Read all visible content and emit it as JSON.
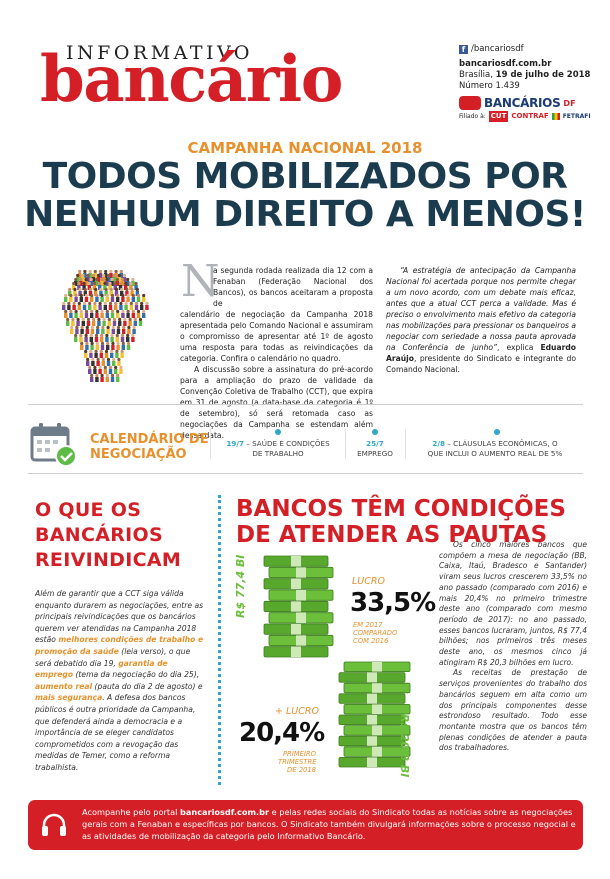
{
  "masthead": {
    "informativo": "INFORMATIVO",
    "bancario": "bancário",
    "facebook": "/bancariosdf",
    "site": "bancariosdf.com.br",
    "date_prefix": "Brasília, ",
    "date": "19 de julho de 2018",
    "number": "Número 1.439",
    "logo_bancarios": "BANCÁRIOS",
    "logo_bancarios_df": "DF",
    "filiado": "Filiado à:",
    "logo_cut": "CUT",
    "logo_contraf": "CONTRAF",
    "logo_fetrafi": "FETRAFI"
  },
  "headline": {
    "kicker": "CAMPANHA NACIONAL 2018",
    "line1": "TODOS MOBILIZADOS POR",
    "line2": "NENHUM DIREITO A MENOS!"
  },
  "lead": {
    "dropcap": "N",
    "p1a": "a segunda rodada realizada dia 12 com a Fenaban (Federação Nacional dos Bancos), os bancos aceitaram a proposta de",
    "p1b": "calendário de negociação da Campanha 2018 apresentada pelo Comando Nacional e assumiram o compromisso de apresentar até 1º de agosto uma resposta para todas as reivindicações da categoria. Confira o calendário no quadro.",
    "p2": "A discussão sobre a assinatura do pré-acordo para a ampliação do prazo de validade da Convenção Coletiva de Trabalho (CCT), que expira em 31 de agosto (a data-base da categoria é 1º de setembro), só será retomada caso as negociações da Campanha se estendam além dessa data.",
    "quote": "“A estratégia de antecipação da Campanha Nacional foi acertada porque nos permite chegar a um novo acordo, com um debate mais eficaz, antes que a atual CCT perca a validade. Mas é preciso o envolvimento mais efetivo da categoria nas mobilizações para pressionar os banqueiros a negociar com seriedade a nossa pauta aprovada na Conferência de junho”",
    "attribution_pre": ", explica ",
    "name": "Eduardo Araújo",
    "attribution_post": ", presidente do Sindicato e integrante do Comando Nacional."
  },
  "calendar": {
    "title_line1": "CALENDÁRIO DE",
    "title_line2": "NEGOCIAÇÃO",
    "items": [
      {
        "date": "19/7",
        "text1": " – SAÚDE E CONDIÇÕES",
        "text2": "DE TRABALHO"
      },
      {
        "date": "25/7",
        "text1": "",
        "text2": "EMPREGO"
      },
      {
        "date": "2/8",
        "text1": " – CLÁUSULAS ECONÔMICAS, O",
        "text2": "QUE INCLUI O AUMENTO REAL DE 5%"
      }
    ]
  },
  "left": {
    "title_l1": "O QUE OS",
    "title_l2": "BANCÁRIOS",
    "title_l3": "REIVINDICAM",
    "t1": "Além de garantir que a CCT siga válida enquanto durarem as negociações, entre as principais reivindicações que os bancários querem ver atendidas na Campanha 2018 estão ",
    "h1": "melhores condições de trabalho e promoção da saúde",
    "t2": " (leia verso), o que será debatido dia 19, ",
    "h2": "garantia de emprego",
    "t3": " (tema da negociação do dia 25), ",
    "h3": "aumento real",
    "t4": " (pauta do dia 2 de agosto) e ",
    "h4": "mais segurança",
    "t5": ". A defesa dos bancos públicos é outra prioridade da Campanha, que defenderá ainda a democracia e a importância de se eleger candidatos comprometidos com a revogação das medidas de Temer, como a reforma trabalhista."
  },
  "right": {
    "title_l1": "BANCOS TÊM CONDIÇÕES",
    "title_l2": "DE ATENDER AS PAUTAS",
    "body1": "Os cinco maiores bancos que compõem a mesa de negociação (BB, Caixa, Itaú, Bradesco e Santander) viram seus lucros crescerem 33,5% no ano passado (comparado com 2016) e mais 20,4% no primeiro trimestre deste ano (comparado com mesmo período de 2017): no ano passado, esses bancos lucraram, juntos, R$ 77,4 bilhões; nos primeiros três meses deste ano, os mesmos cinco já atingiram R$ 20,3 bilhões em lucro.",
    "body2": "As receitas de prestação de serviços provenientes do trabalho dos bancários seguem em alta como um dos principais componentes desse estrondoso resultado. Todo esse montante mostra que os bancos têm plenas condições de atender a pauta dos trabalhadores.",
    "stat1": {
      "amount": "R$ 77,4 BI",
      "label": "LUCRO",
      "value": "33,5%",
      "note1": "EM 2017",
      "note2": "COMPARADO",
      "note3": "COM 2016"
    },
    "stat2": {
      "amount": "R$ 20,3 BI",
      "label": "+ LUCRO",
      "value": "20,4%",
      "note1": "PRIMEIRO",
      "note2": "TRIMESTRE",
      "note3": "DE 2018"
    }
  },
  "footer": {
    "t1": "Acompanhe pelo portal ",
    "site": "bancariosdf.com.br",
    "t2": " e pelas redes sociais do Sindicato todas as notícias sobre as negociações gerais com a Fenaban e específicas por bancos. O Sindicato também divulgará informações sobre o processo negocial e as atividades de mobilização da categoria pelo Informativo Bancário."
  },
  "colors": {
    "brand_red": "#d41f26",
    "accent_orange": "#e8912c",
    "headline_navy": "#1b3b4f",
    "accent_teal": "#2fa8c8",
    "money_green": "#6bbf3a"
  }
}
